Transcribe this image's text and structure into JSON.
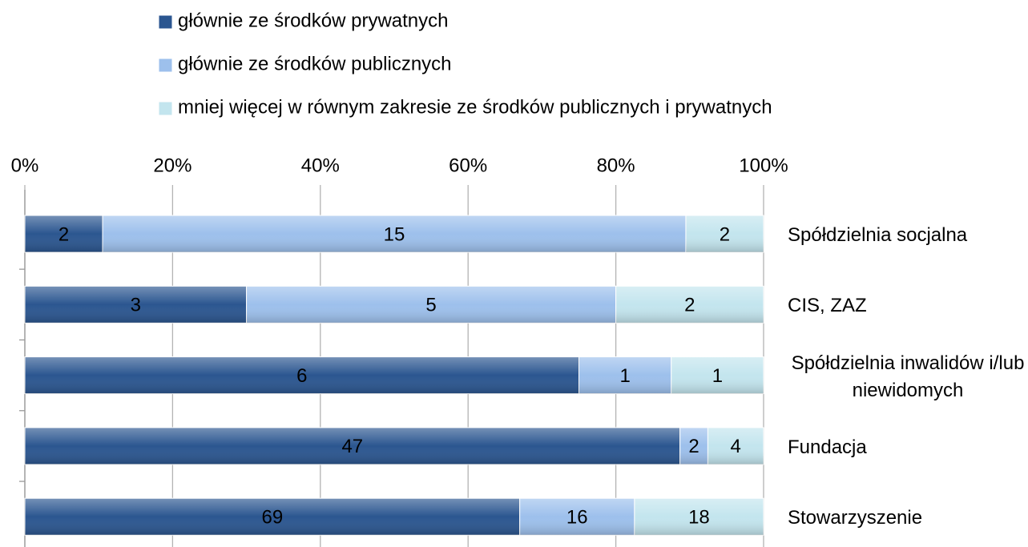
{
  "chart_data": {
    "type": "bar",
    "orientation": "horizontal",
    "stack": "percent",
    "categories": [
      "Spółdzielnia socjalna",
      "CIS, ZAZ",
      "Spółdzielnia inwalidów i/lub niewidomych",
      "Fundacja",
      "Stowarzyszenie"
    ],
    "series": [
      {
        "name": "głównie ze środków prywatnych",
        "color": "#2b5690",
        "values": [
          2,
          3,
          6,
          47,
          69
        ]
      },
      {
        "name": "głównie ze środków publicznych",
        "color": "#9dc0ec",
        "values": [
          15,
          5,
          1,
          2,
          16
        ]
      },
      {
        "name": "mniej więcej w równym zakresie ze środków publicznych i prywatnych",
        "color": "#c3e5ee",
        "values": [
          2,
          2,
          1,
          4,
          18
        ]
      }
    ],
    "xlim": [
      0,
      100
    ],
    "xticks": [
      {
        "value": 0,
        "label": "0%"
      },
      {
        "value": 20,
        "label": "20%"
      },
      {
        "value": 40,
        "label": "40%"
      },
      {
        "value": 60,
        "label": "60%"
      },
      {
        "value": 80,
        "label": "80%"
      },
      {
        "value": 100,
        "label": "100%"
      }
    ],
    "grid": true,
    "legend": "top"
  }
}
